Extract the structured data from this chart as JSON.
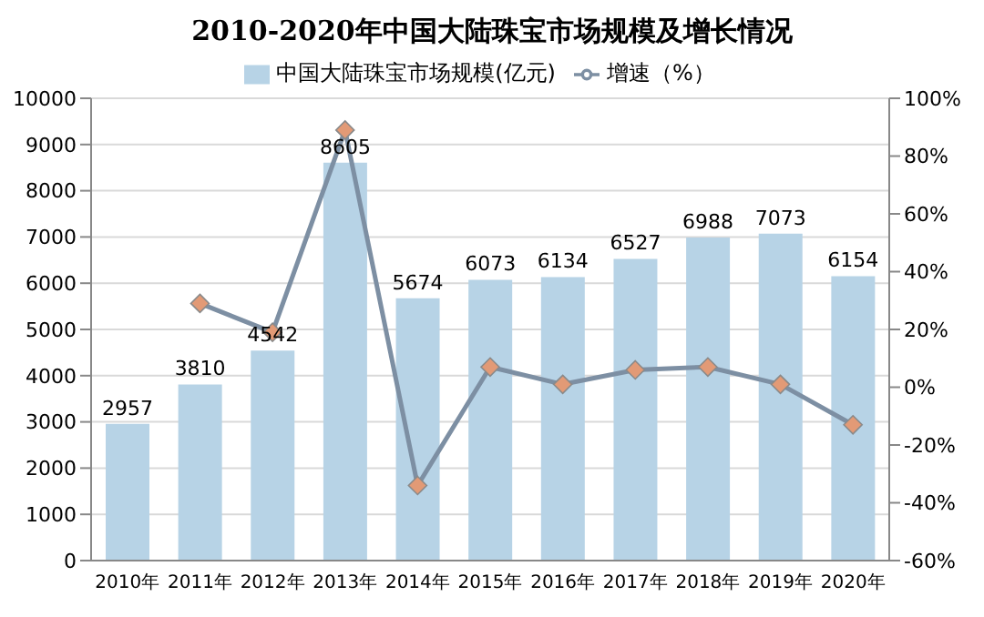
{
  "chart_data": {
    "type": "bar",
    "title": "2010-2020年中国大陆珠宝市场规模及增长情况",
    "categories": [
      "2010年",
      "2011年",
      "2012年",
      "2013年",
      "2014年",
      "2015年",
      "2016年",
      "2017年",
      "2018年",
      "2019年",
      "2020年"
    ],
    "series": [
      {
        "name": "中国大陆珠宝市场规模(亿元)",
        "color": "#b7d3e6",
        "values": [
          2957,
          3810,
          4542,
          8605,
          5674,
          6073,
          6134,
          6527,
          6988,
          7073,
          6154
        ],
        "value_labels": [
          "2957",
          "3810",
          "4542",
          "8605",
          "5674",
          "6073",
          "6134",
          "6527",
          "6988",
          "7073",
          "6154"
        ]
      },
      {
        "name": "增速（%）",
        "type": "line",
        "axis": "y2",
        "color": "#7d8fa3",
        "values": [
          null,
          29,
          19,
          89,
          -34,
          7,
          1,
          6,
          7,
          1,
          -13
        ]
      }
    ],
    "ylim": [
      0,
      10000
    ],
    "yticks": [
      0,
      1000,
      2000,
      3000,
      4000,
      5000,
      6000,
      7000,
      8000,
      9000,
      10000
    ],
    "y2lim": [
      -60,
      100
    ],
    "y2ticks": [
      {
        "value": -60,
        "label": "-60%"
      },
      {
        "value": -40,
        "label": "-40%"
      },
      {
        "value": -20,
        "label": "-20%"
      },
      {
        "value": 0,
        "label": "0%"
      },
      {
        "value": 20,
        "label": "20%"
      },
      {
        "value": 40,
        "label": "40%"
      },
      {
        "value": 60,
        "label": "60%"
      },
      {
        "value": 80,
        "label": "80%"
      },
      {
        "value": 100,
        "label": "100%"
      }
    ],
    "grid": "y",
    "legend": "top",
    "marker": "diamond"
  }
}
